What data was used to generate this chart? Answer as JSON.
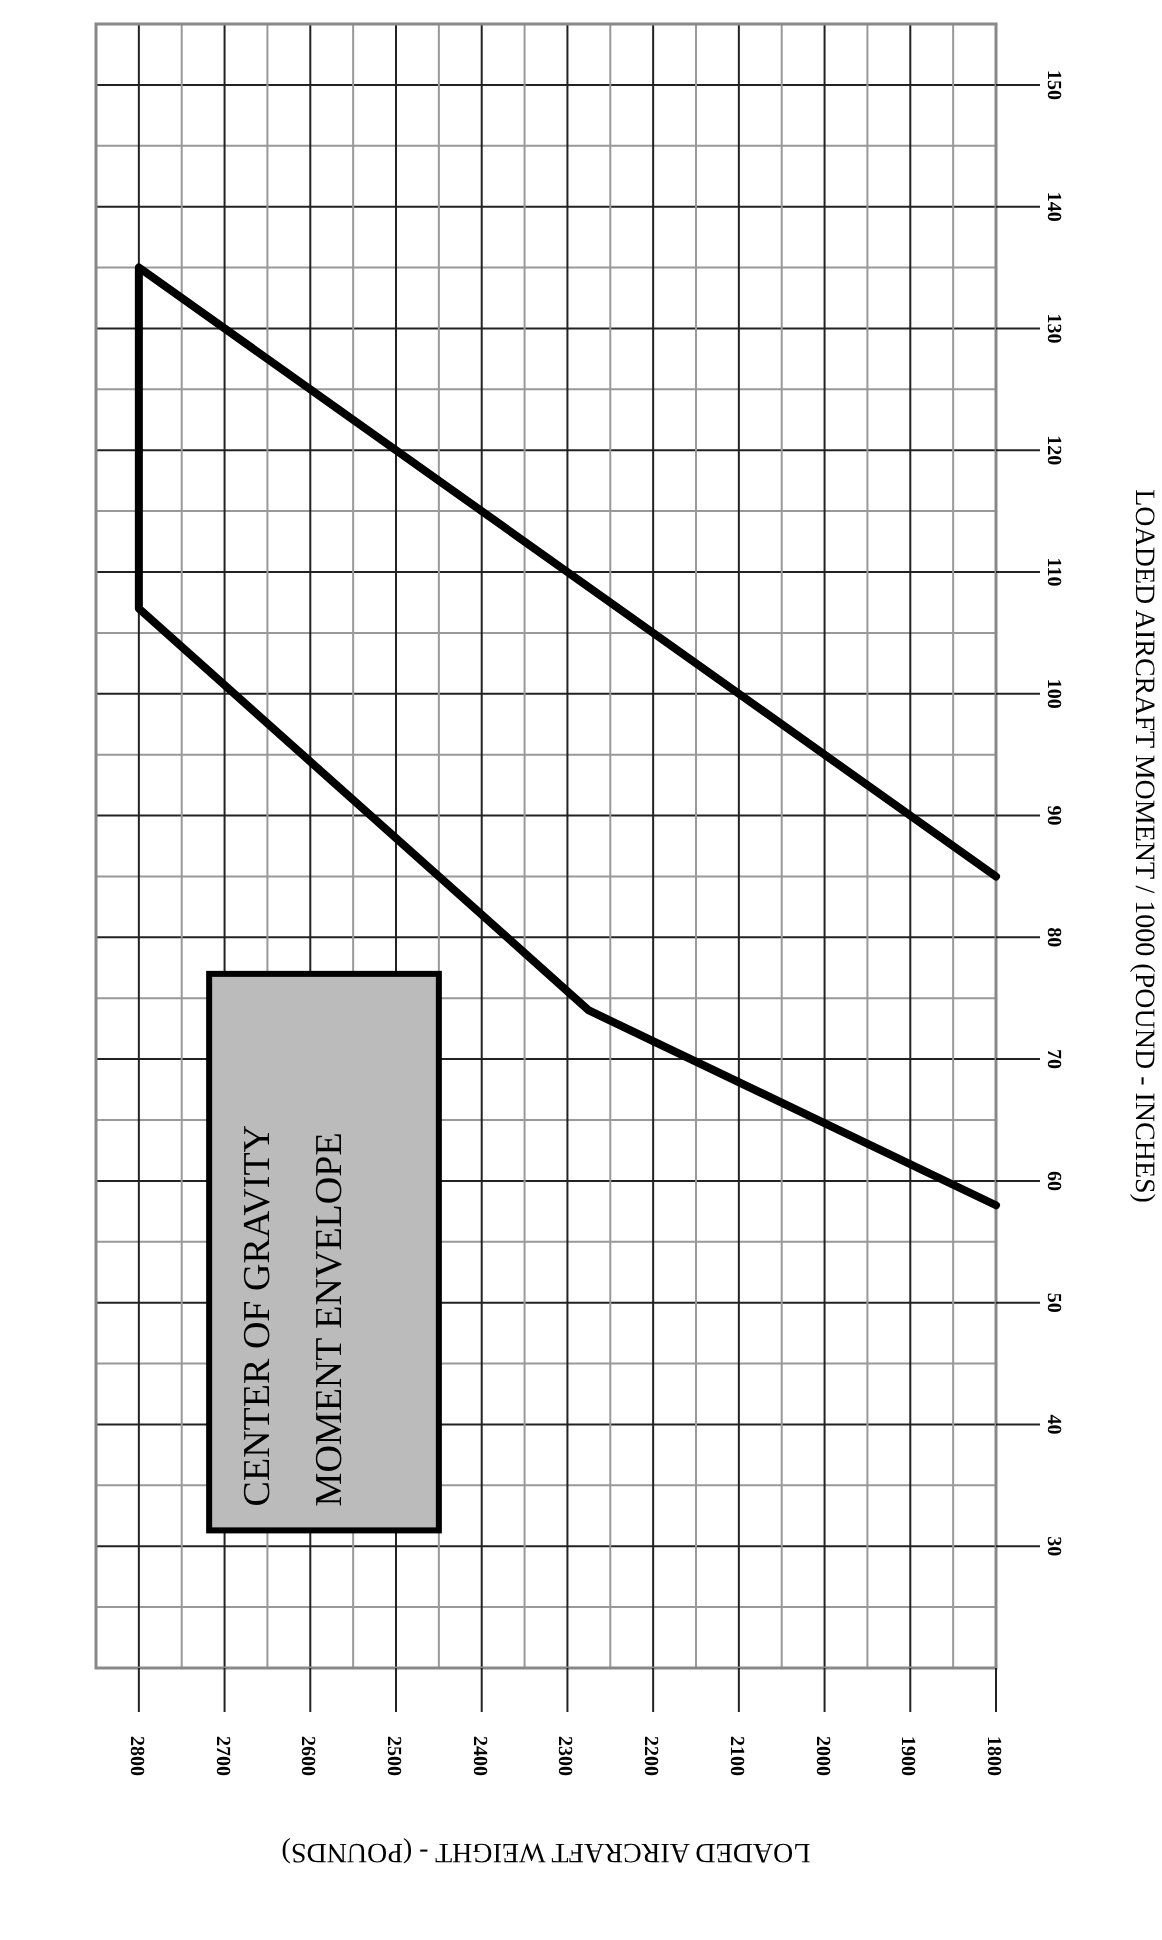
{
  "chart_data": {
    "type": "line",
    "xlabel": "LOADED AIRCRAFT WEIGHT - (POUNDS)",
    "ylabel": "LOADED AIRCRAFT MOMENT / 1000 (POUND - INCHES)",
    "annotations": [
      "CENTER OF GRAVITY",
      "MOMENT ENVELOPE"
    ],
    "xlim": [
      2850,
      1800
    ],
    "xticks": [
      1800,
      {
        "value": 1850,
        "label": null
      },
      1900,
      {
        "value": 1950,
        "label": null
      },
      2000,
      {
        "value": 2050,
        "label": null
      },
      2100,
      {
        "value": 2150,
        "label": null
      },
      2200,
      {
        "value": 2250,
        "label": null
      },
      2300,
      {
        "value": 2350,
        "label": null
      },
      2400,
      {
        "value": 2450,
        "label": null
      },
      2500,
      {
        "value": 2550,
        "label": null
      },
      2600,
      {
        "value": 2650,
        "label": null
      },
      2700,
      {
        "value": 2750,
        "label": null
      },
      2800
    ],
    "ylim": [
      20,
      155
    ],
    "yticks": [
      {
        "value": 25,
        "label": null
      },
      30,
      {
        "value": 35,
        "label": null
      },
      40,
      {
        "value": 45,
        "label": null
      },
      50,
      {
        "value": 55,
        "label": null
      },
      60,
      {
        "value": 65,
        "label": null
      },
      70,
      {
        "value": 75,
        "label": null
      },
      80,
      {
        "value": 85,
        "label": null
      },
      90,
      {
        "value": 95,
        "label": null
      },
      100,
      {
        "value": 105,
        "label": null
      },
      110,
      {
        "value": 115,
        "label": null
      },
      120,
      {
        "value": 125,
        "label": null
      },
      130,
      {
        "value": 135,
        "label": null
      },
      140,
      {
        "value": 145,
        "label": null
      },
      150
    ],
    "grid": true,
    "series": [
      {
        "color": "#000000",
        "x": [
          1800,
          2800,
          2800,
          2275,
          1800
        ],
        "values": [
          85,
          135,
          107,
          74,
          58
        ]
      }
    ]
  }
}
